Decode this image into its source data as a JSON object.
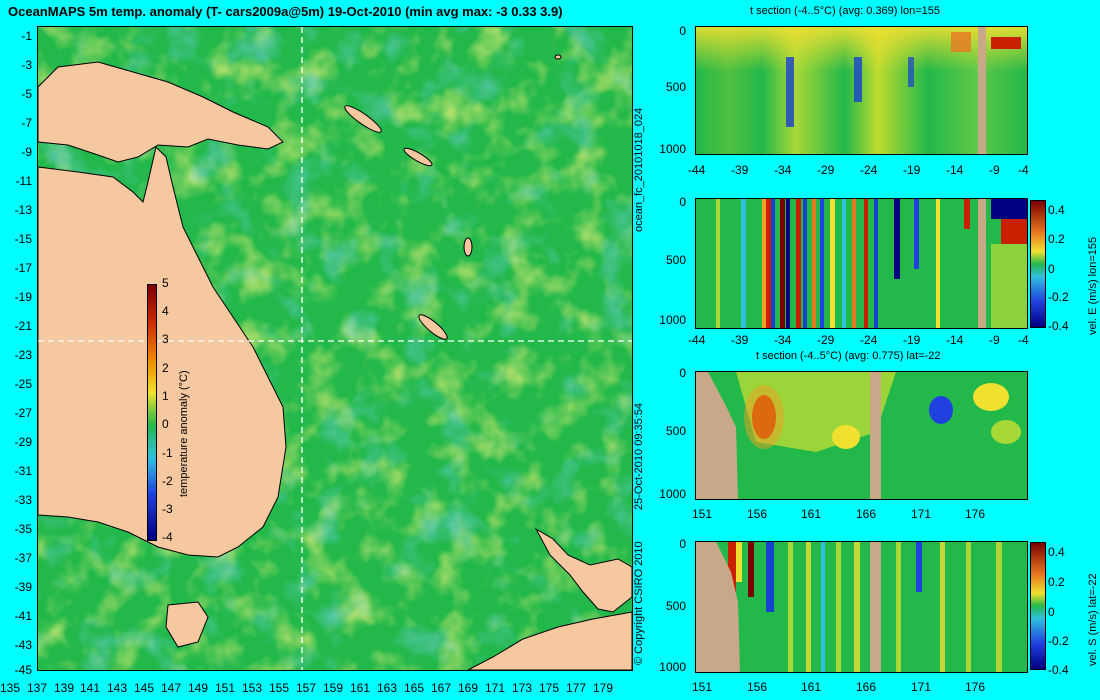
{
  "map": {
    "title": "OceanMAPS 5m temp. anomaly (T- cars2009a@5m) 19-Oct-2010 (min avg max: -3 0.33 3.9)",
    "lon_ticks": [
      "135",
      "137",
      "139",
      "141",
      "143",
      "145",
      "147",
      "149",
      "151",
      "153",
      "155",
      "157",
      "159",
      "161",
      "163",
      "165",
      "167",
      "169",
      "171",
      "173",
      "175",
      "177",
      "179"
    ],
    "lat_ticks": [
      "-1",
      "-3",
      "-5",
      "-7",
      "-9",
      "-11",
      "-13",
      "-15",
      "-17",
      "-19",
      "-21",
      "-23",
      "-25",
      "-27",
      "-29",
      "-31",
      "-33",
      "-35",
      "-37",
      "-39",
      "-41",
      "-43",
      "-45"
    ],
    "colorbar": {
      "label": "temperature anomaly (°C)",
      "ticks": [
        "5",
        "4",
        "3",
        "2",
        "1",
        "0",
        "-1",
        "-2",
        "-3",
        "-4"
      ],
      "range": [
        -4,
        5
      ]
    },
    "crosshair": {
      "lon": 155,
      "lat": -22
    }
  },
  "side_labels": {
    "run": "ocean_fc_20101018_024",
    "date": "25-Oct-2010 09:35:54",
    "copyright": "© Copyright CSIRO 2010"
  },
  "panels": [
    {
      "id": "t-lon",
      "title": "t section (-4..5°C) (avg: 0.369) lon=155",
      "x_ticks": [
        "-44",
        "-39",
        "-34",
        "-29",
        "-24",
        "-19",
        "-14",
        "-9",
        "-4"
      ],
      "y_ticks": [
        "0",
        "500",
        "1000"
      ],
      "colorbar_label": "",
      "colorbar_ticks": []
    },
    {
      "id": "vE-lon",
      "title": "",
      "x_ticks": [
        "-44",
        "-39",
        "-34",
        "-29",
        "-24",
        "-19",
        "-14",
        "-9",
        "-4"
      ],
      "y_ticks": [
        "0",
        "500",
        "1000"
      ],
      "colorbar_label": "vel. E (m/s) lon=155",
      "colorbar_ticks": [
        "0.4",
        "0.2",
        "0",
        "-0.2",
        "-0.4"
      ]
    },
    {
      "id": "t-lat",
      "title": "t section (-4..5°C) (avg: 0.775) lat=-22",
      "x_ticks": [
        "151",
        "156",
        "161",
        "166",
        "171",
        "176"
      ],
      "y_ticks": [
        "0",
        "500",
        "1000"
      ],
      "colorbar_label": "",
      "colorbar_ticks": []
    },
    {
      "id": "vS-lat",
      "title": "",
      "x_ticks": [
        "151",
        "156",
        "161",
        "166",
        "171",
        "176"
      ],
      "y_ticks": [
        "0",
        "500",
        "1000"
      ],
      "colorbar_label": "vel. S (m/s) lat=-22",
      "colorbar_ticks": [
        "0.4",
        "0.2",
        "0",
        "-0.2",
        "-0.4"
      ]
    }
  ],
  "colors": {
    "background": "#00ffff",
    "land": "#f5c8a0",
    "section_land": "#c8a888",
    "ocean_base": "#22b84a",
    "anomaly_warm": "#e8e830",
    "anomaly_cold": "#38a8e8"
  }
}
